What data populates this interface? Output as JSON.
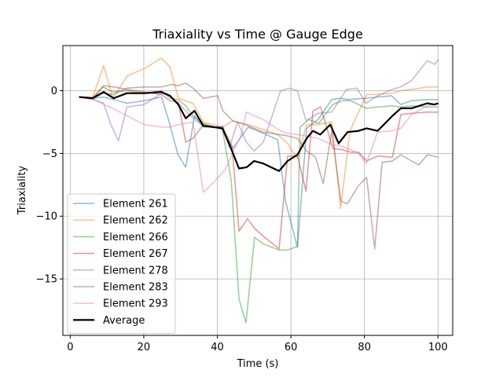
{
  "chart_data": {
    "type": "line",
    "title": "Triaxiality vs Time @ Gauge Edge",
    "xlabel": "Time (s)",
    "ylabel": "Triaxiality",
    "xlim": [
      -2,
      104
    ],
    "ylim": [
      -19.5,
      3.6
    ],
    "xticks": [
      0,
      20,
      40,
      60,
      80,
      100
    ],
    "yticks": [
      -15,
      -10,
      -5,
      0
    ],
    "xtick_labels": [
      "0",
      "20",
      "40",
      "60",
      "80",
      "100"
    ],
    "ytick_labels": [
      "−15",
      "−10",
      "−5",
      "0"
    ],
    "grid": true,
    "legend_position": "lower-left",
    "series": [
      {
        "name": "Element 261",
        "color": "#1f77b4",
        "x": [
          2.4,
          6.1,
          8.9,
          11.8,
          15.4,
          20.1,
          24.8,
          26.8,
          29.3,
          31.4,
          33.8,
          36.1,
          41.4,
          44.2,
          48.4,
          52.5,
          56.4,
          58.6,
          61.8,
          64.3,
          67.4,
          71.1,
          73.6,
          75.4,
          80.4,
          83.6,
          87.4,
          89.9,
          92.8,
          97.2,
          100.1
        ],
        "y": [
          -0.5,
          -0.6,
          -0.5,
          -0.7,
          -1.0,
          -0.8,
          -0.5,
          -2.4,
          -5.1,
          -6.1,
          -2.0,
          -2.9,
          -2.9,
          -4.6,
          -2.9,
          -3.4,
          -3.9,
          -8.9,
          -12.5,
          -3.0,
          -2.3,
          -0.7,
          -0.6,
          -0.7,
          -0.6,
          -0.5,
          -0.4,
          -1.1,
          -0.8,
          -0.7,
          -0.7
        ]
      },
      {
        "name": "Element 262",
        "color": "#ff7f0e",
        "x": [
          2.4,
          6.1,
          9.1,
          11.6,
          15.6,
          20.4,
          24.8,
          27.1,
          29.4,
          31.4,
          33.4,
          36.2,
          41.5,
          44.2,
          48.3,
          52.6,
          56.4,
          59.1,
          61.8,
          64.3,
          67.4,
          71.1,
          73.5,
          76.1,
          80.6,
          83.6,
          87.6,
          89.9,
          92.8,
          97.1,
          100.1
        ],
        "y": [
          -0.5,
          -0.5,
          2.0,
          -0.6,
          1.2,
          1.8,
          2.6,
          1.9,
          -0.6,
          -0.8,
          -1.0,
          -2.5,
          -2.9,
          -2.4,
          -2.7,
          -3.1,
          -3.5,
          -4.2,
          -5.4,
          -2.7,
          -2.7,
          -2.5,
          -9.4,
          -3.2,
          -0.3,
          -0.3,
          -0.2,
          0.0,
          0.1,
          0.3,
          0.3
        ]
      },
      {
        "name": "Element 266",
        "color": "#2ca02c",
        "x": [
          2.4,
          6.1,
          8.9,
          11.6,
          15.4,
          20.1,
          24.8,
          27.1,
          29.3,
          31.4,
          33.4,
          36.1,
          41.4,
          43.8,
          45.9,
          47.8,
          50.1,
          52.5,
          56.8,
          59.1,
          61.8,
          62.5,
          64.8,
          67.6,
          71.4,
          74.0,
          76.3,
          80.5,
          83.6,
          87.4,
          89.9,
          92.8,
          97.1,
          100.1
        ],
        "y": [
          -0.5,
          -0.6,
          0.3,
          -0.1,
          0.0,
          -0.2,
          0.0,
          -0.6,
          -0.7,
          -1.2,
          -2.0,
          -2.6,
          -3.1,
          -7.2,
          -16.6,
          -18.5,
          -11.7,
          -12.2,
          -12.7,
          -12.7,
          -12.4,
          -2.9,
          -2.3,
          -2.6,
          -1.1,
          -0.8,
          -0.8,
          -1.4,
          -1.3,
          -1.2,
          -1.3,
          -1.2,
          -1.3,
          -1.3
        ]
      },
      {
        "name": "Element 267",
        "color": "#d62728",
        "x": [
          2.4,
          6.1,
          9.1,
          11.8,
          15.4,
          20.1,
          24.8,
          27.1,
          29.4,
          31.4,
          33.4,
          36.2,
          41.4,
          44.0,
          45.9,
          48.2,
          50.2,
          52.5,
          56.8,
          59.1,
          61.8,
          64.1,
          66.0,
          68.1,
          71.4,
          74.0,
          76.3,
          78.4,
          80.6,
          83.6,
          87.6,
          89.9,
          92.8,
          97.1,
          100.1
        ],
        "y": [
          -0.5,
          -0.6,
          0.4,
          0.3,
          0.1,
          -0.1,
          -0.3,
          -0.8,
          -0.9,
          -4.1,
          -3.8,
          -2.7,
          -3.0,
          -4.4,
          -11.2,
          -10.2,
          -11.0,
          -11.6,
          -12.6,
          -5.2,
          -5.2,
          -8.0,
          -1.6,
          -1.3,
          -4.6,
          -4.7,
          -4.9,
          -4.9,
          -5.6,
          -5.2,
          -5.3,
          -1.9,
          -1.8,
          -1.7,
          -1.7
        ]
      },
      {
        "name": "Element 278",
        "color": "#9467bd",
        "x": [
          2.4,
          6.1,
          9.1,
          10.9,
          13.1,
          15.4,
          20.1,
          24.8,
          27.1,
          29.4,
          31.4,
          33.4,
          36.2,
          39.5,
          41.5,
          43.3,
          45.5,
          47.9,
          50.0,
          52.5,
          57.2,
          59.6,
          61.8,
          64.1,
          67.4,
          71.1,
          75.1,
          78.0,
          80.4,
          83.6,
          87.4,
          89.9,
          92.8,
          97.1,
          99.1,
          100.1
        ],
        "y": [
          -0.5,
          -0.7,
          -1.0,
          -2.6,
          -4.0,
          -1.3,
          -1.1,
          -0.2,
          -0.4,
          -1.0,
          -1.6,
          -2.2,
          -2.8,
          -2.9,
          -2.8,
          -4.5,
          -2.5,
          -4.1,
          -4.8,
          -4.1,
          0.0,
          0.2,
          0.0,
          -2.4,
          -1.8,
          -1.7,
          0.1,
          0.2,
          -1.0,
          -0.4,
          0.1,
          0.3,
          0.8,
          2.4,
          2.1,
          2.5
        ]
      },
      {
        "name": "Element 283",
        "color": "#8c564b",
        "x": [
          2.4,
          6.1,
          9.1,
          11.6,
          15.4,
          20.1,
          24.8,
          27.6,
          29.2,
          31.4,
          33.4,
          36.2,
          40.1,
          41.5,
          44.2,
          47.5,
          50.0,
          52.5,
          56.8,
          59.1,
          61.8,
          64.3,
          66.7,
          68.8,
          71.1,
          73.6,
          75.4,
          78.3,
          80.6,
          82.8,
          84.8,
          87.6,
          89.9,
          92.8,
          94.8,
          97.1,
          100.1
        ],
        "y": [
          -0.5,
          -0.6,
          -0.2,
          -0.3,
          0.2,
          0.3,
          0.3,
          0.5,
          0.4,
          0.6,
          0.2,
          -0.6,
          -0.4,
          -1.6,
          -2.4,
          -2.7,
          -3.0,
          -3.3,
          -3.5,
          -3.6,
          -3.8,
          -4.8,
          -5.3,
          -7.4,
          -3.2,
          -8.8,
          -9.0,
          -7.6,
          -6.9,
          -12.6,
          -5.7,
          -5.6,
          -5.1,
          -5.6,
          -5.9,
          -5.1,
          -5.3
        ]
      },
      {
        "name": "Element 293",
        "color": "#e377c2",
        "x": [
          2.4,
          6.1,
          9.1,
          11.6,
          15.4,
          20.1,
          24.8,
          27.1,
          29.4,
          31.4,
          33.4,
          36.2,
          39.3,
          42.1,
          44.2,
          46.4,
          47.9,
          50.0,
          52.5,
          56.6,
          59.1,
          61.8,
          64.3,
          67.4,
          71.1,
          73.6,
          75.4,
          78.4,
          80.5,
          83.6,
          87.4,
          89.9,
          92.8,
          97.1,
          100.1
        ],
        "y": [
          -0.5,
          -0.6,
          -1.1,
          -1.4,
          -2.0,
          -2.7,
          -2.9,
          -2.9,
          -2.7,
          -2.6,
          -2.5,
          -8.1,
          -7.2,
          -6.3,
          -4.9,
          -3.6,
          -1.7,
          -2.0,
          -2.3,
          -3.1,
          -3.4,
          -3.5,
          -3.6,
          -3.8,
          -4.3,
          -4.4,
          -4.6,
          -5.0,
          -5.8,
          -3.3,
          -3.2,
          -3.0,
          -1.9,
          -1.2,
          -1.0
        ]
      },
      {
        "name": "Average",
        "color": "#000000",
        "x": [
          2.4,
          6.1,
          9.1,
          11.8,
          15.4,
          20.1,
          24.8,
          27.1,
          29.4,
          31.4,
          33.8,
          36.2,
          41.4,
          44.0,
          45.9,
          48.0,
          50.0,
          52.5,
          56.8,
          59.1,
          61.8,
          64.3,
          66.0,
          68.0,
          70.7,
          73.0,
          75.4,
          78.4,
          80.6,
          83.6,
          87.6,
          89.9,
          92.8,
          97.1,
          99.0,
          100.1
        ],
        "y": [
          -0.5,
          -0.6,
          -0.1,
          -0.6,
          -0.2,
          -0.2,
          -0.1,
          -0.4,
          -1.1,
          -2.2,
          -1.6,
          -2.8,
          -3.0,
          -4.8,
          -6.2,
          -6.1,
          -5.6,
          -5.8,
          -6.4,
          -5.6,
          -5.1,
          -3.8,
          -3.2,
          -3.5,
          -2.7,
          -4.2,
          -3.3,
          -3.2,
          -3.0,
          -3.2,
          -2.0,
          -1.4,
          -1.4,
          -1.0,
          -1.1,
          -1.0
        ]
      }
    ]
  }
}
